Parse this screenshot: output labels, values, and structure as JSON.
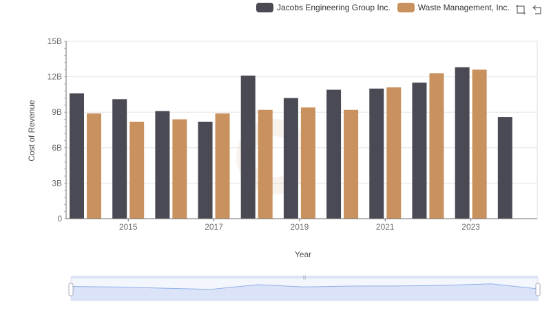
{
  "colors": {
    "series1": "#4a4a55",
    "series2": "#c8915e",
    "grid": "#e6e6e6",
    "axis": "#6e6e6e",
    "zoom_fill": "#c9d7f5",
    "zoom_line": "#8fb0e6"
  },
  "toolbox": {
    "zoom_icon": "zoom-icon",
    "restore_icon": "restore-icon"
  },
  "chart_data": {
    "type": "bar",
    "title": "",
    "xlabel": "Year",
    "ylabel": "Cost of Revenue",
    "ylim": [
      0,
      15
    ],
    "y_ticks": [
      "0",
      "3B",
      "6B",
      "9B",
      "12B",
      "15B"
    ],
    "x_tick_labels": [
      "2015",
      "2017",
      "2019",
      "2021",
      "2023"
    ],
    "categories": [
      "2014",
      "2015",
      "2016",
      "2017",
      "2018",
      "2019",
      "2020",
      "2021",
      "2022",
      "2023",
      "2024"
    ],
    "legend_position": "top-right",
    "series": [
      {
        "name": "Jacobs Engineering Group Inc.",
        "values": [
          10.6,
          10.1,
          9.1,
          8.2,
          12.1,
          10.2,
          10.9,
          11.0,
          11.5,
          12.8,
          8.6
        ]
      },
      {
        "name": "Waste Management, Inc.",
        "values": [
          8.9,
          8.2,
          8.4,
          8.9,
          9.2,
          9.4,
          9.2,
          11.1,
          12.3,
          12.6,
          null
        ]
      }
    ]
  }
}
